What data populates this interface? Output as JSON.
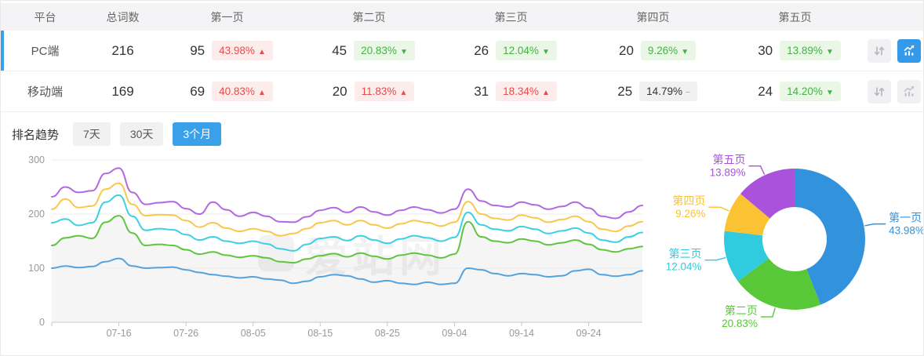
{
  "table": {
    "headers": [
      "平台",
      "总词数",
      "第一页",
      "第二页",
      "第三页",
      "第四页",
      "第五页"
    ],
    "rows": [
      {
        "platform": "PC端",
        "total": "216",
        "selected": true,
        "pages": [
          {
            "count": "95",
            "pct": "43.98%",
            "arrow": "▲",
            "tone": "red"
          },
          {
            "count": "45",
            "pct": "20.83%",
            "arrow": "▼",
            "tone": "green"
          },
          {
            "count": "26",
            "pct": "12.04%",
            "arrow": "▼",
            "tone": "green"
          },
          {
            "count": "20",
            "pct": "9.26%",
            "arrow": "▼",
            "tone": "green"
          },
          {
            "count": "30",
            "pct": "13.89%",
            "arrow": "▼",
            "tone": "green"
          }
        ]
      },
      {
        "platform": "移动端",
        "total": "169",
        "selected": false,
        "pages": [
          {
            "count": "69",
            "pct": "40.83%",
            "arrow": "▲",
            "tone": "red"
          },
          {
            "count": "20",
            "pct": "11.83%",
            "arrow": "▲",
            "tone": "red"
          },
          {
            "count": "31",
            "pct": "18.34%",
            "arrow": "▲",
            "tone": "red"
          },
          {
            "count": "25",
            "pct": "14.79%",
            "arrow": "−",
            "tone": "gray"
          },
          {
            "count": "24",
            "pct": "14.20%",
            "arrow": "▼",
            "tone": "green"
          }
        ]
      }
    ]
  },
  "trend": {
    "label": "排名趋势",
    "tabs": [
      "7天",
      "30天",
      "3个月"
    ],
    "active_tab": "3个月"
  },
  "watermark": "爱站网",
  "colors": {
    "accent_blue": "#3aa0ea",
    "badge_red_text": "#e74c4c",
    "badge_green_text": "#43b244",
    "selected_row_bar": "#3aa0ea"
  },
  "chart_data": [
    {
      "type": "line",
      "title": "排名趋势 (3个月)",
      "ylim": [
        0,
        300
      ],
      "yticks": [
        0,
        100,
        200,
        300
      ],
      "grid": true,
      "x_axis": {
        "tick_labels": [
          "07-16",
          "07-26",
          "08-05",
          "08-15",
          "08-25",
          "09-04",
          "09-14",
          "09-24"
        ],
        "tick_days": [
          10,
          20,
          30,
          40,
          50,
          60,
          70,
          80
        ],
        "total_days": 88
      },
      "series": [
        {
          "name": "第一页",
          "color": "#54a2de",
          "area": false,
          "values": [
            100,
            104,
            101,
            103,
            112,
            118,
            104,
            100,
            101,
            102,
            97,
            92,
            88,
            85,
            82,
            84,
            80,
            78,
            72,
            76,
            84,
            88,
            86,
            80,
            74,
            77,
            72,
            70,
            74,
            70,
            72,
            100,
            97,
            90,
            86,
            90,
            88,
            84,
            86,
            95,
            98,
            88,
            85,
            88,
            95
          ]
        },
        {
          "name": "第二页",
          "color": "#5fc53f",
          "area": true,
          "values": [
            142,
            156,
            160,
            155,
            185,
            197,
            165,
            142,
            144,
            142,
            134,
            126,
            130,
            124,
            120,
            123,
            119,
            112,
            110,
            117,
            123,
            127,
            121,
            128,
            122,
            117,
            124,
            128,
            124,
            119,
            126,
            186,
            158,
            150,
            147,
            154,
            150,
            143,
            147,
            152,
            144,
            134,
            130,
            136,
            140
          ]
        },
        {
          "name": "第三页",
          "color": "#3bd0e3",
          "area": false,
          "values": [
            184,
            191,
            179,
            184,
            222,
            235,
            196,
            170,
            173,
            171,
            162,
            152,
            158,
            150,
            146,
            150,
            145,
            136,
            132,
            144,
            155,
            158,
            151,
            160,
            152,
            146,
            154,
            160,
            156,
            150,
            157,
            203,
            180,
            172,
            169,
            177,
            172,
            164,
            169,
            174,
            165,
            152,
            148,
            158,
            166
          ]
        },
        {
          "name": "第四页",
          "color": "#f9c84a",
          "area": false,
          "values": [
            209,
            228,
            212,
            215,
            246,
            257,
            218,
            197,
            199,
            198,
            188,
            176,
            184,
            174,
            168,
            173,
            168,
            160,
            164,
            173,
            184,
            188,
            180,
            188,
            180,
            174,
            182,
            188,
            184,
            178,
            185,
            223,
            200,
            192,
            189,
            198,
            193,
            185,
            190,
            196,
            186,
            172,
            168,
            178,
            186
          ]
        },
        {
          "name": "第五页",
          "color": "#b168e0",
          "area": false,
          "values": [
            232,
            250,
            240,
            243,
            275,
            285,
            240,
            218,
            221,
            223,
            210,
            200,
            222,
            208,
            196,
            203,
            196,
            186,
            185,
            195,
            207,
            212,
            203,
            213,
            204,
            198,
            207,
            213,
            208,
            202,
            209,
            246,
            224,
            216,
            213,
            222,
            217,
            209,
            214,
            222,
            211,
            196,
            192,
            204,
            216
          ]
        }
      ]
    },
    {
      "type": "pie",
      "donut": true,
      "start_angle": "top",
      "direction": "clockwise",
      "slices": [
        {
          "label": "第一页",
          "value": 43.98,
          "pct_text": "43.98%",
          "color": "#3392dc"
        },
        {
          "label": "第二页",
          "value": 20.83,
          "pct_text": "20.83%",
          "color": "#58c838"
        },
        {
          "label": "第三页",
          "value": 12.04,
          "pct_text": "12.04%",
          "color": "#30cbde"
        },
        {
          "label": "第四页",
          "value": 9.26,
          "pct_text": "9.26%",
          "color": "#fbc233"
        },
        {
          "label": "第五页",
          "value": 13.89,
          "pct_text": "13.89%",
          "color": "#ab52dd"
        }
      ]
    }
  ]
}
